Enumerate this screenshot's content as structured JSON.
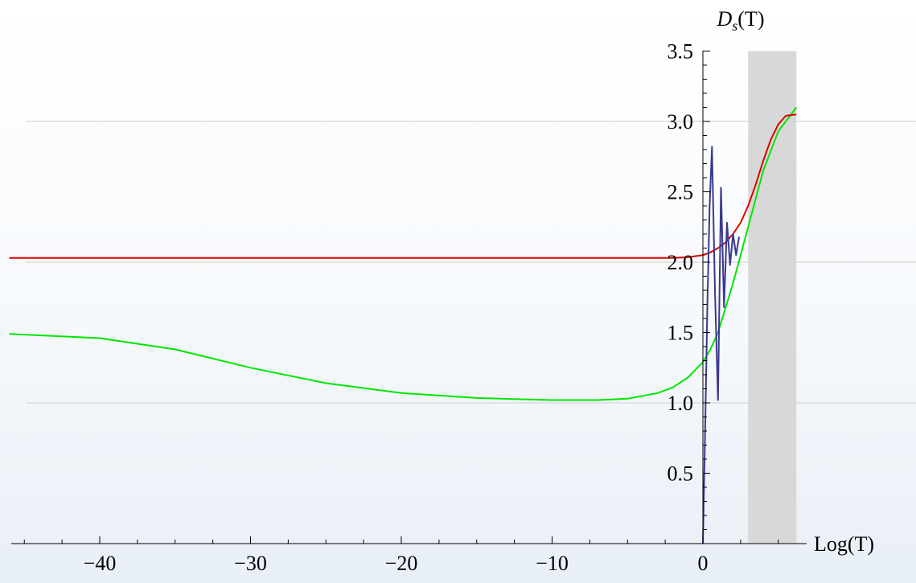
{
  "chart_data": {
    "type": "line",
    "title": "",
    "xlabel": "Log(T)",
    "ylabel": "D_s(T)",
    "ylabel_main": "D",
    "ylabel_sub": "s",
    "ylabel_suffix": "(T)",
    "xlim": [
      -46,
      6.5
    ],
    "ylim": [
      0,
      3.5
    ],
    "xticks": [
      -40,
      -30,
      -20,
      -10,
      0
    ],
    "xtick_labels": [
      "−40",
      "−30",
      "−20",
      "−10",
      "0"
    ],
    "yticks": [
      0.5,
      1.0,
      1.5,
      2.0,
      2.5,
      3.0,
      3.5
    ],
    "ytick_labels": [
      "0.5",
      "1.0",
      "1.5",
      "2.0",
      "2.5",
      "3.0",
      "3.5"
    ],
    "gridlines_y": [
      1.0,
      2.0,
      3.0
    ],
    "shaded_region": {
      "x": [
        3.0,
        6.2
      ],
      "color": "#d8d8d8"
    },
    "series": [
      {
        "color": "#00e600",
        "x": [
          -46,
          -40,
          -35,
          -30,
          -25,
          -20,
          -15,
          -10,
          -7,
          -5,
          -3,
          -2,
          -1,
          0,
          0.5,
          1,
          2,
          3,
          4,
          5,
          6.2
        ],
        "y": [
          1.49,
          1.46,
          1.38,
          1.25,
          1.14,
          1.07,
          1.035,
          1.02,
          1.02,
          1.03,
          1.07,
          1.11,
          1.18,
          1.29,
          1.38,
          1.5,
          1.85,
          2.25,
          2.65,
          2.93,
          3.1
        ]
      },
      {
        "color": "#dd0000",
        "x": [
          -46,
          -20,
          -2,
          -1,
          0,
          0.5,
          1,
          1.5,
          2,
          2.5,
          3,
          3.5,
          4,
          4.5,
          5,
          5.5,
          6.2
        ],
        "y": [
          2.03,
          2.03,
          2.03,
          2.035,
          2.05,
          2.07,
          2.1,
          2.14,
          2.2,
          2.28,
          2.4,
          2.55,
          2.72,
          2.87,
          2.98,
          3.04,
          3.05
        ]
      },
      {
        "color": "#3a3a8c",
        "x": [
          0.0,
          0.15,
          0.3,
          0.45,
          0.6,
          0.8,
          1.0,
          1.2,
          1.4,
          1.6,
          1.8,
          2.0,
          2.2,
          2.4
        ],
        "y": [
          0.0,
          0.8,
          1.7,
          2.4,
          2.82,
          1.8,
          1.02,
          2.53,
          1.68,
          2.28,
          1.98,
          2.2,
          2.05,
          2.18
        ]
      }
    ]
  }
}
